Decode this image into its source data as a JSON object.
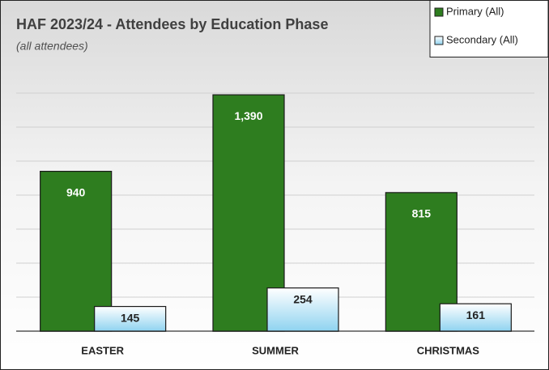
{
  "chart_data": {
    "type": "bar",
    "title": "HAF 2023/24 - Attendees by Education Phase",
    "subtitle": "(all attendees)",
    "categories": [
      "EASTER",
      "SUMMER",
      "CHRISTMAS"
    ],
    "series": [
      {
        "name": "Primary (All)",
        "color": "#2e7d1f",
        "values": [
          940,
          1390,
          815
        ],
        "value_labels": [
          "940",
          "1,390",
          "815"
        ]
      },
      {
        "name": "Secondary (All)",
        "color": "#8fd3f0",
        "values": [
          145,
          254,
          161
        ],
        "value_labels": [
          "145",
          "254",
          "161"
        ]
      }
    ],
    "ylim": [
      0,
      1400
    ],
    "yticks": [
      0,
      200,
      400,
      600,
      800,
      1000,
      1200,
      1400
    ],
    "grid": true,
    "legend": "top-right"
  }
}
